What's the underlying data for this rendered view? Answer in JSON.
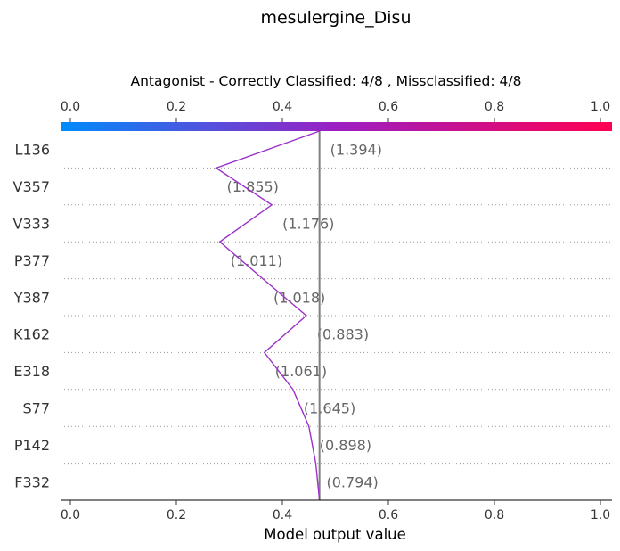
{
  "chart_data": {
    "type": "line",
    "title": "mesulergine_Disu",
    "subtitle": "Antagonist - Correctly Classified: 4/8 , Missclassified: 4/8",
    "xlabel": "Model output value",
    "xlim": [
      0.0,
      1.0
    ],
    "xticks": [
      "0.0",
      "0.2",
      "0.4",
      "0.6",
      "0.8",
      "1.0"
    ],
    "base_value": 0.47,
    "colorbar": {
      "from": "#008bfb",
      "mid": "#9b1fc2",
      "to": "#ff0052"
    },
    "line_color": "#9b30c8",
    "features": [
      {
        "name": "L136",
        "value_label": "(1.394)",
        "output_top": 0.47,
        "output_bottom": 0.275
      },
      {
        "name": "V357",
        "value_label": "(1.855)",
        "output_top": 0.275,
        "output_bottom": 0.38
      },
      {
        "name": "V333",
        "value_label": "(1.176)",
        "output_top": 0.38,
        "output_bottom": 0.282
      },
      {
        "name": "P377",
        "value_label": "(1.011)",
        "output_top": 0.282,
        "output_bottom": 0.363
      },
      {
        "name": "Y387",
        "value_label": "(1.018)",
        "output_top": 0.363,
        "output_bottom": 0.445
      },
      {
        "name": "K162",
        "value_label": "(0.883)",
        "output_top": 0.445,
        "output_bottom": 0.366
      },
      {
        "name": "E318",
        "value_label": "(1.061)",
        "output_top": 0.366,
        "output_bottom": 0.42
      },
      {
        "name": "S77",
        "value_label": "(1.645)",
        "output_top": 0.42,
        "output_bottom": 0.45
      },
      {
        "name": "P142",
        "value_label": "(0.898)",
        "output_top": 0.45,
        "output_bottom": 0.463
      },
      {
        "name": "F332",
        "value_label": "(0.794)",
        "output_top": 0.463,
        "output_bottom": 0.47
      }
    ]
  }
}
